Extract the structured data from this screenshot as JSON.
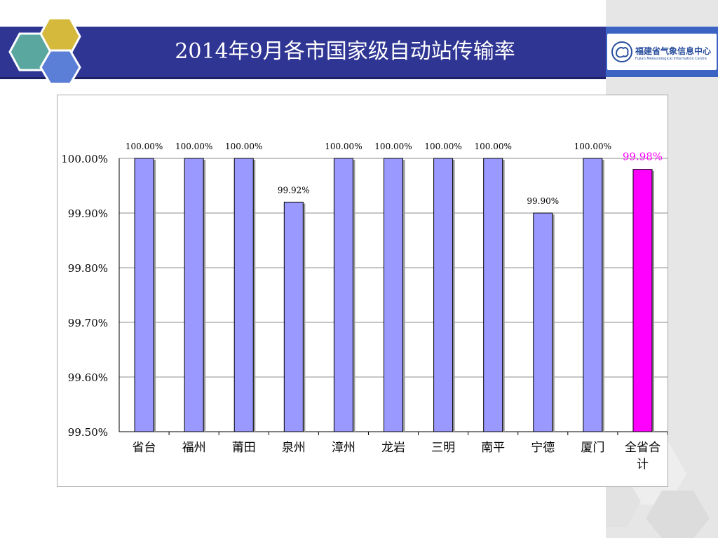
{
  "header": {
    "title": "2014年9月各市国家级自动站传输率"
  },
  "logo": {
    "name": "福建省气象信息中心",
    "subtitle": "Fujian Meteorological Information Centre"
  },
  "colors": {
    "header": "#2f3593",
    "bar": "#9999ff",
    "highlight": "#ff00ff",
    "hex_gold": "#d4b93c",
    "hex_teal": "#5aa7a0",
    "hex_blue": "#5b7fd6"
  },
  "chart_data": {
    "type": "bar",
    "categories": [
      "省台",
      "福州",
      "莆田",
      "泉州",
      "漳州",
      "龙岩",
      "三明",
      "南平",
      "宁德",
      "厦门",
      "全省合计"
    ],
    "values": [
      100.0,
      100.0,
      100.0,
      99.92,
      100.0,
      100.0,
      100.0,
      100.0,
      99.9,
      100.0,
      99.98
    ],
    "data_labels": [
      "100.00%",
      "100.00%",
      "100.00%",
      "99.92%",
      "100.00%",
      "100.00%",
      "100.00%",
      "100.00%",
      "99.90%",
      "100.00%",
      "99.98%"
    ],
    "highlight_index": 10,
    "title": "",
    "xlabel": "",
    "ylabel": "",
    "ylim": [
      99.5,
      100.0
    ],
    "yticks": [
      99.5,
      99.6,
      99.7,
      99.8,
      99.9,
      100.0
    ],
    "ytick_labels": [
      "99.50%",
      "99.60%",
      "99.70%",
      "99.80%",
      "99.90%",
      "100.00%"
    ],
    "grid": true,
    "legend": "none"
  }
}
